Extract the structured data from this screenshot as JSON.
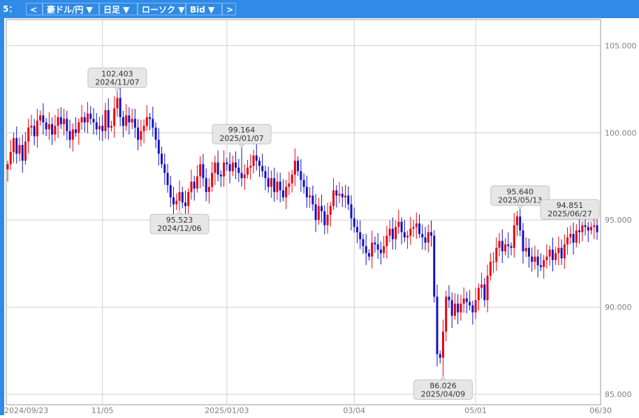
{
  "toolbar": {
    "index_label": "5：",
    "prev_label": "<",
    "pair_label": "豪ドル/円 ▼",
    "period_label": "日足 ▼",
    "style_label": "ローソク ▼",
    "price_type_label": "Bid ▼",
    "next_label": ">"
  },
  "colors": {
    "up": "#e8000f",
    "down": "#1010c8",
    "grid": "#cfcfcf",
    "frame": "#2f8be6",
    "callout_bg": "#e6e6e6",
    "axis_text": "#808080"
  },
  "chart_data": {
    "type": "candlestick",
    "title": "",
    "xlabel": "",
    "ylabel": "",
    "ylim": [
      84.4,
      106.5
    ],
    "grid": true,
    "yticks": [
      {
        "value": 105,
        "label": "105.000"
      },
      {
        "value": 100,
        "label": "100.000"
      },
      {
        "value": 95,
        "label": "95.000"
      },
      {
        "value": 90,
        "label": "90.000"
      },
      {
        "value": 85,
        "label": "85.000"
      }
    ],
    "xticks": [
      {
        "index": 0,
        "label": "2024/09/23"
      },
      {
        "index": 32,
        "label": "11/05"
      },
      {
        "index": 74,
        "label": "2025/01/03"
      },
      {
        "index": 117,
        "label": "03/04"
      },
      {
        "index": 158,
        "label": "05/01"
      },
      {
        "index": 200,
        "label": "06/30"
      }
    ],
    "series_close": [
      98.2,
      98.9,
      99.7,
      98.8,
      99.3,
      98.4,
      99.5,
      100.3,
      100.4,
      99.8,
      100.7,
      101.0,
      100.6,
      100.2,
      100.5,
      99.9,
      100.4,
      100.9,
      100.5,
      100.8,
      100.1,
      99.6,
      100.2,
      100.0,
      100.6,
      100.9,
      100.6,
      101.1,
      100.8,
      100.6,
      100.2,
      100.4,
      100.1,
      101.3,
      100.3,
      100.4,
      101.4,
      102.0,
      100.9,
      100.4,
      101.0,
      100.6,
      100.8,
      100.3,
      99.6,
      100.1,
      100.4,
      100.9,
      100.8,
      100.3,
      99.6,
      98.8,
      98.2,
      97.7,
      97.0,
      96.3,
      95.9,
      96.1,
      96.6,
      96.0,
      95.8,
      96.6,
      97.2,
      96.8,
      97.5,
      98.2,
      97.4,
      96.6,
      96.9,
      97.7,
      98.3,
      97.6,
      97.5,
      98.3,
      98.2,
      97.8,
      98.3,
      98.0,
      97.7,
      97.4,
      97.6,
      98.0,
      98.1,
      98.7,
      98.4,
      98.1,
      97.8,
      97.4,
      96.9,
      97.4,
      96.6,
      97.2,
      96.7,
      96.3,
      96.9,
      97.1,
      97.6,
      98.4,
      97.8,
      97.3,
      96.9,
      96.3,
      96.4,
      95.9,
      95.0,
      95.8,
      95.5,
      94.7,
      95.3,
      95.8,
      96.7,
      96.4,
      96.5,
      96.3,
      96.4,
      95.9,
      95.1,
      94.6,
      94.3,
      93.9,
      93.5,
      93.1,
      92.9,
      93.7,
      93.6,
      93.3,
      93.1,
      93.5,
      94.1,
      94.5,
      93.9,
      94.6,
      94.9,
      94.3,
      94.0,
      94.1,
      94.5,
      94.6,
      94.8,
      94.2,
      94.0,
      93.7,
      94.3,
      94.1,
      90.6,
      87.3,
      87.1,
      88.6,
      90.6,
      90.4,
      89.5,
      90.2,
      89.7,
      90.2,
      90.5,
      90.3,
      90.1,
      89.7,
      90.4,
      91.1,
      91.3,
      90.4,
      91.8,
      92.6,
      92.6,
      93.4,
      93.8,
      93.2,
      93.6,
      93.5,
      93.4,
      94.7,
      95.2,
      94.4,
      93.2,
      93.4,
      92.9,
      92.6,
      92.9,
      92.4,
      92.3,
      92.7,
      92.9,
      93.3,
      92.7,
      93.1,
      93.4,
      92.8,
      93.6,
      94.0,
      94.2,
      93.7,
      94.4,
      94.3,
      94.7,
      94.6,
      94.4,
      94.6,
      94.7,
      94.3
    ],
    "callouts": [
      {
        "index": 37,
        "price": 102.403,
        "date": "2024/11/07",
        "kind": "high"
      },
      {
        "index": 58,
        "price": 95.523,
        "date": "2024/12/06",
        "kind": "low"
      },
      {
        "index": 79,
        "price": 99.164,
        "date": "2025/01/07",
        "kind": "high"
      },
      {
        "index": 147,
        "price": 86.026,
        "date": "2025/04/09",
        "kind": "low"
      },
      {
        "index": 173,
        "price": 95.64,
        "date": "2025/05/13",
        "kind": "high"
      },
      {
        "index": 197,
        "price": 94.851,
        "date": "2025/06/27",
        "kind": "high"
      }
    ]
  }
}
